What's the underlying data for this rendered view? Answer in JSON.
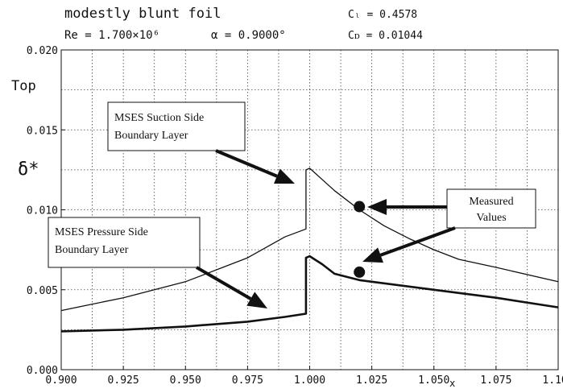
{
  "header": {
    "title": "modestly blunt foil",
    "cl_text": "Cₗ = 0.4578",
    "re_text": "Re = 1.700×10⁶",
    "alpha_text": "α = 0.9000°",
    "cd_text": "Cᴅ = 0.01044"
  },
  "chart_data": {
    "type": "line",
    "xlabel": "x",
    "ylabel": "δ*",
    "top_label": "Top",
    "xlim": [
      0.9,
      1.1
    ],
    "ylim": [
      0.0,
      0.02
    ],
    "x_ticks": [
      "0.900",
      "0.925",
      "0.950",
      "0.975",
      "1.000",
      "1.025",
      "1.050",
      "1.075",
      "1.100"
    ],
    "y_ticks": [
      "0.000",
      "0.005",
      "0.010",
      "0.015",
      "0.020"
    ],
    "grid": true,
    "series": [
      {
        "name": "MSES Suction Side Boundary Layer",
        "x": [
          0.9,
          0.925,
          0.95,
          0.975,
          0.99,
          0.9985,
          0.9985,
          1.0,
          1.005,
          1.01,
          1.02,
          1.03,
          1.04,
          1.05,
          1.06,
          1.075,
          1.1
        ],
        "y": [
          0.0037,
          0.0045,
          0.0055,
          0.007,
          0.0083,
          0.0088,
          0.0125,
          0.0126,
          0.0119,
          0.0112,
          0.01,
          0.009,
          0.0082,
          0.0075,
          0.0069,
          0.0064,
          0.0055
        ]
      },
      {
        "name": "MSES Pressure Side Boundary Layer",
        "x": [
          0.9,
          0.925,
          0.95,
          0.975,
          0.99,
          0.9985,
          0.9985,
          1.0,
          1.005,
          1.01,
          1.02,
          1.03,
          1.05,
          1.075,
          1.1
        ],
        "y": [
          0.0024,
          0.0025,
          0.0027,
          0.003,
          0.0033,
          0.0035,
          0.007,
          0.0071,
          0.0066,
          0.006,
          0.0056,
          0.0054,
          0.005,
          0.0045,
          0.0039
        ]
      }
    ],
    "measured": {
      "label": [
        "Measured",
        "Values"
      ],
      "points": [
        {
          "x": 1.02,
          "y": 0.0102
        },
        {
          "x": 1.02,
          "y": 0.0061
        }
      ]
    },
    "annotations": {
      "suction": [
        "MSES Suction Side",
        "Boundary Layer"
      ],
      "pressure": [
        "MSES Pressure Side",
        "Boundary Layer"
      ]
    }
  }
}
